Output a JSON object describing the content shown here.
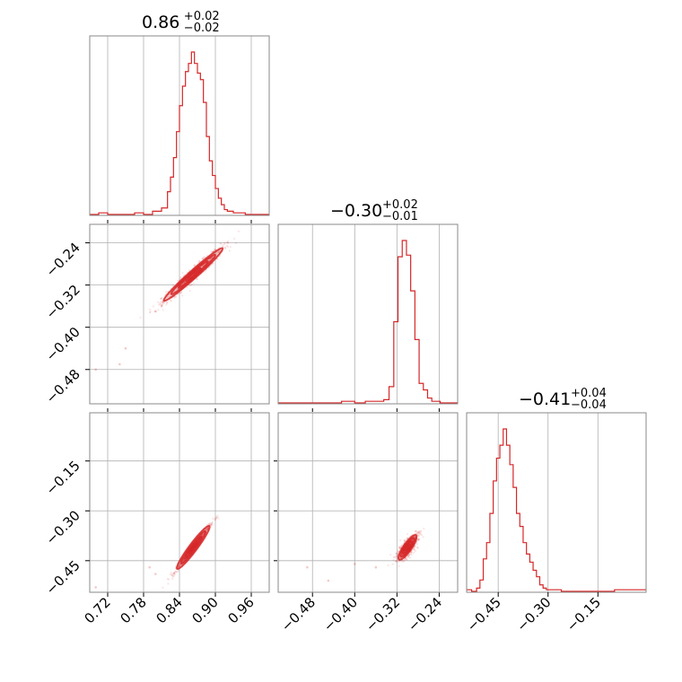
{
  "chart_data": {
    "type": "corner",
    "color": "#d62728",
    "grid": true,
    "diagonal": [
      {
        "title": {
          "main": "0.86",
          "plus": "+0.02",
          "minus": "−0.02"
        },
        "range": [
          0.69,
          0.99
        ],
        "x_ticks": [
          0.72,
          0.78,
          0.84,
          0.9,
          0.96
        ],
        "x_tick_labels": [
          "0.72",
          "0.78",
          "0.84",
          "0.90",
          "0.96"
        ],
        "hist_y_max": 1.0,
        "hist_bins": [
          0.69,
          0.705,
          0.72,
          0.735,
          0.75,
          0.765,
          0.78,
          0.795,
          0.81,
          0.82,
          0.825,
          0.83,
          0.835,
          0.84,
          0.845,
          0.85,
          0.855,
          0.86,
          0.865,
          0.87,
          0.875,
          0.88,
          0.885,
          0.89,
          0.895,
          0.9,
          0.905,
          0.91,
          0.915,
          0.92,
          0.93,
          0.95,
          0.97,
          0.99
        ],
        "hist_values": [
          0.0,
          0.01,
          0.0,
          0.0,
          0.0,
          0.01,
          0.0,
          0.02,
          0.04,
          0.14,
          0.23,
          0.35,
          0.51,
          0.67,
          0.79,
          0.88,
          0.93,
          1.0,
          0.93,
          0.87,
          0.83,
          0.69,
          0.48,
          0.33,
          0.24,
          0.16,
          0.1,
          0.06,
          0.03,
          0.02,
          0.01,
          0.0,
          0.0
        ]
      },
      {
        "title": {
          "main": "−0.30",
          "plus": "+0.02",
          "minus": "−0.01"
        },
        "range": [
          -0.545,
          -0.205
        ],
        "x_ticks": [
          -0.48,
          -0.4,
          -0.32,
          -0.24
        ],
        "x_tick_labels": [
          "−0.48",
          "−0.40",
          "−0.32",
          "−0.24"
        ],
        "hist_y_max": 1.0,
        "hist_bins": [
          -0.545,
          -0.45,
          -0.425,
          -0.4,
          -0.38,
          -0.36,
          -0.345,
          -0.335,
          -0.326,
          -0.318,
          -0.31,
          -0.302,
          -0.294,
          -0.286,
          -0.278,
          -0.27,
          -0.262,
          -0.254,
          -0.246,
          -0.238,
          -0.225,
          -0.205
        ],
        "hist_values": [
          0.0,
          0.0,
          0.01,
          0.0,
          0.01,
          0.01,
          0.02,
          0.1,
          0.5,
          0.9,
          1.0,
          0.91,
          0.69,
          0.39,
          0.12,
          0.08,
          0.03,
          0.01,
          0.01,
          0.0,
          0.0
        ]
      },
      {
        "title": {
          "main": "−0.41",
          "plus": "+0.04",
          "minus": "−0.04"
        },
        "range": [
          -0.545,
          -0.005
        ],
        "x_ticks": [
          -0.45,
          -0.3,
          -0.15
        ],
        "x_tick_labels": [
          "−0.45",
          "−0.30",
          "−0.15"
        ],
        "hist_y_max": 1.0,
        "hist_bins": [
          -0.545,
          -0.53,
          -0.515,
          -0.505,
          -0.495,
          -0.485,
          -0.475,
          -0.465,
          -0.455,
          -0.445,
          -0.435,
          -0.425,
          -0.415,
          -0.405,
          -0.395,
          -0.385,
          -0.375,
          -0.365,
          -0.355,
          -0.345,
          -0.335,
          -0.325,
          -0.315,
          -0.305,
          -0.295,
          -0.28,
          -0.26,
          -0.23,
          -0.18,
          -0.1,
          -0.005
        ],
        "hist_values": [
          0.01,
          0.0,
          0.02,
          0.07,
          0.2,
          0.3,
          0.48,
          0.68,
          0.82,
          0.9,
          1.0,
          0.9,
          0.78,
          0.64,
          0.48,
          0.4,
          0.3,
          0.23,
          0.18,
          0.13,
          0.09,
          0.04,
          0.02,
          0.01,
          0.01,
          0.01,
          0.0,
          0.0,
          0.0,
          0.01
        ]
      }
    ],
    "pairs": [
      {
        "row": 1,
        "col": 0,
        "x_range": [
          0.69,
          0.99
        ],
        "y_range": [
          -0.545,
          -0.205
        ],
        "y_ticks": [
          -0.24,
          -0.32,
          -0.4,
          -0.48
        ],
        "y_tick_labels": [
          "−0.24",
          "−0.32",
          "−0.40",
          "−0.48"
        ],
        "center": [
          0.863,
          -0.3
        ],
        "slope": 1.01,
        "spread_along": 0.035,
        "spread_across": 0.006,
        "outliers": [
          [
            0.7,
            -0.48
          ],
          [
            0.74,
            -0.47
          ],
          [
            0.75,
            -0.44
          ],
          [
            0.8,
            -0.37
          ],
          [
            0.81,
            -0.36
          ]
        ]
      },
      {
        "row": 2,
        "col": 0,
        "x_range": [
          0.69,
          0.99
        ],
        "y_range": [
          -0.545,
          -0.005
        ],
        "y_ticks": [
          -0.15,
          -0.3,
          -0.45
        ],
        "y_tick_labels": [
          "−0.15",
          "−0.30",
          "−0.45"
        ],
        "center": [
          0.863,
          -0.41
        ],
        "slope": 2.4,
        "spread_along": 0.035,
        "spread_across": 0.004,
        "outliers": [
          [
            0.7,
            -0.53
          ],
          [
            0.79,
            -0.47
          ],
          [
            0.8,
            -0.49
          ]
        ]
      },
      {
        "row": 2,
        "col": 1,
        "x_range": [
          -0.545,
          -0.205
        ],
        "y_range": [
          -0.545,
          -0.005
        ],
        "center": [
          -0.3,
          -0.41
        ],
        "slope": 2.3,
        "spread_along": 0.02,
        "spread_across": 0.01,
        "outliers": [
          [
            -0.49,
            -0.47
          ],
          [
            -0.45,
            -0.51
          ],
          [
            -0.4,
            -0.46
          ],
          [
            -0.36,
            -0.47
          ]
        ]
      }
    ]
  }
}
